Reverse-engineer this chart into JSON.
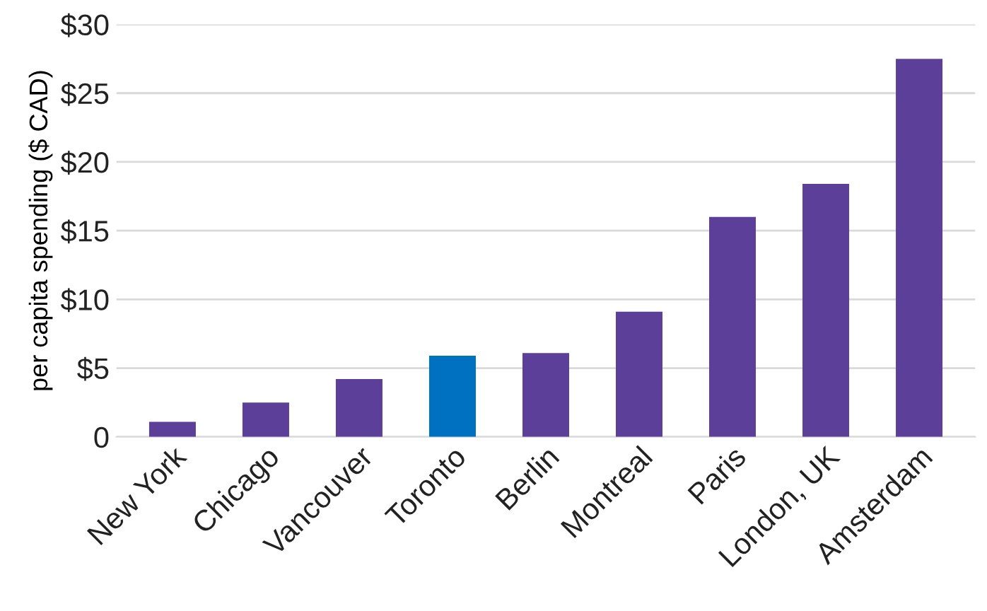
{
  "chart_data": {
    "type": "bar",
    "ylabel": "per capita spending ($ CAD)",
    "categories": [
      "New York",
      "Chicago",
      "Vancouver",
      "Toronto",
      "Berlin",
      "Montreal",
      "Paris",
      "London, UK",
      "Amsterdam"
    ],
    "values": [
      1.1,
      2.5,
      4.2,
      5.9,
      6.1,
      9.1,
      16.0,
      18.4,
      27.5
    ],
    "colors": [
      "#5b3f99",
      "#5b3f99",
      "#5b3f99",
      "#0070c0",
      "#5b3f99",
      "#5b3f99",
      "#5b3f99",
      "#5b3f99",
      "#5b3f99"
    ],
    "ylim": [
      0,
      30
    ],
    "yticks": [
      {
        "value": 0,
        "label": "0"
      },
      {
        "value": 5,
        "label": "$5"
      },
      {
        "value": 10,
        "label": "$10"
      },
      {
        "value": 15,
        "label": "$15"
      },
      {
        "value": 20,
        "label": "$20"
      },
      {
        "value": 25,
        "label": "$25"
      },
      {
        "value": 30,
        "label": "$30"
      }
    ],
    "grid": "y"
  }
}
